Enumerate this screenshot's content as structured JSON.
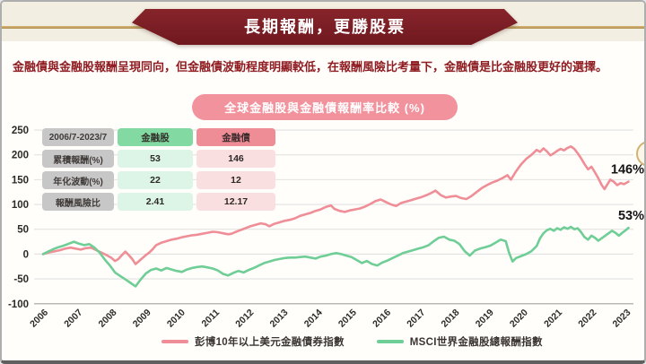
{
  "page": {
    "banner_title": "長期報酬，更勝股票",
    "subtitle": "金融債與金融股報酬呈現同向，但金融債波動程度明顯較低，在報酬風險比考量下，金融債是比金融股更好的選擇。"
  },
  "colors": {
    "banner_maroon": "#7d2128",
    "gold_accent": "#c8a264",
    "subtitle_text": "#8e1c21",
    "badge_pink": "#f1929d",
    "table_label_gray": "#c7c7c7",
    "stock_header_green": "#82d9a1",
    "bond_header_red": "#ee8d95",
    "stock_cell_green": "#dcf5e6",
    "bond_cell_pink": "#fadfe1"
  },
  "table": {
    "period": "2006/7-2023/7",
    "col_stock": "金融股",
    "col_bond": "金融債",
    "rows": [
      {
        "label": "累積報酬(%)",
        "stock": "53",
        "bond": "146"
      },
      {
        "label": "年化波動(%)",
        "stock": "22",
        "bond": "12"
      },
      {
        "label": "報酬風險比",
        "stock": "2.41",
        "bond": "12.17"
      }
    ]
  },
  "chart_data": {
    "type": "line",
    "title": "全球金融股與金融債報酬率比較 (%)",
    "x_range": [
      2006.5,
      2023.58
    ],
    "ylim": [
      -100,
      250
    ],
    "y_ticks": [
      250,
      200,
      150,
      100,
      50,
      0,
      -50,
      -100
    ],
    "x_ticks": [
      "2006",
      "2007",
      "2008",
      "2009",
      "2010",
      "2011",
      "2012",
      "2013",
      "2014",
      "2015",
      "2016",
      "2017",
      "2018",
      "2019",
      "2020",
      "2021",
      "2022",
      "2023"
    ],
    "grid": true,
    "legend_position": "bottom",
    "series": [
      {
        "name": "彭博10年以上美元金融債券指數",
        "color": "#ef8e97",
        "end_label": "146%",
        "final_value": 146,
        "points": [
          [
            2006.5,
            0
          ],
          [
            2006.65,
            3
          ],
          [
            2006.8,
            5
          ],
          [
            2007.0,
            8
          ],
          [
            2007.15,
            11
          ],
          [
            2007.3,
            13
          ],
          [
            2007.45,
            11
          ],
          [
            2007.6,
            9
          ],
          [
            2007.75,
            12
          ],
          [
            2007.9,
            13
          ],
          [
            2008.05,
            8
          ],
          [
            2008.2,
            3
          ],
          [
            2008.35,
            -2
          ],
          [
            2008.5,
            -8
          ],
          [
            2008.6,
            -14
          ],
          [
            2008.7,
            -10
          ],
          [
            2008.8,
            -2
          ],
          [
            2008.9,
            5
          ],
          [
            2009.0,
            -2
          ],
          [
            2009.1,
            -10
          ],
          [
            2009.2,
            -20
          ],
          [
            2009.3,
            -14
          ],
          [
            2009.4,
            -8
          ],
          [
            2009.5,
            -2
          ],
          [
            2009.6,
            3
          ],
          [
            2009.7,
            10
          ],
          [
            2009.8,
            18
          ],
          [
            2009.95,
            23
          ],
          [
            2010.1,
            26
          ],
          [
            2010.25,
            29
          ],
          [
            2010.4,
            31
          ],
          [
            2010.55,
            34
          ],
          [
            2010.7,
            36
          ],
          [
            2010.85,
            38
          ],
          [
            2011.0,
            39
          ],
          [
            2011.15,
            41
          ],
          [
            2011.3,
            43
          ],
          [
            2011.45,
            45
          ],
          [
            2011.6,
            44
          ],
          [
            2011.75,
            42
          ],
          [
            2011.9,
            40
          ],
          [
            2012.0,
            41
          ],
          [
            2012.1,
            44
          ],
          [
            2012.25,
            48
          ],
          [
            2012.4,
            52
          ],
          [
            2012.55,
            56
          ],
          [
            2012.7,
            59
          ],
          [
            2012.85,
            62
          ],
          [
            2013.0,
            60
          ],
          [
            2013.1,
            56
          ],
          [
            2013.25,
            61
          ],
          [
            2013.4,
            64
          ],
          [
            2013.55,
            67
          ],
          [
            2013.7,
            69
          ],
          [
            2013.85,
            72
          ],
          [
            2014.0,
            77
          ],
          [
            2014.15,
            80
          ],
          [
            2014.3,
            83
          ],
          [
            2014.45,
            87
          ],
          [
            2014.6,
            90
          ],
          [
            2014.75,
            95
          ],
          [
            2014.9,
            98
          ],
          [
            2015.0,
            91
          ],
          [
            2015.15,
            87
          ],
          [
            2015.3,
            85
          ],
          [
            2015.45,
            88
          ],
          [
            2015.6,
            90
          ],
          [
            2015.75,
            92
          ],
          [
            2015.9,
            96
          ],
          [
            2016.05,
            101
          ],
          [
            2016.2,
            107
          ],
          [
            2016.35,
            110
          ],
          [
            2016.5,
            105
          ],
          [
            2016.65,
            100
          ],
          [
            2016.8,
            97
          ],
          [
            2016.95,
            103
          ],
          [
            2017.1,
            106
          ],
          [
            2017.25,
            109
          ],
          [
            2017.4,
            112
          ],
          [
            2017.55,
            115
          ],
          [
            2017.7,
            119
          ],
          [
            2017.85,
            124
          ],
          [
            2017.95,
            128
          ],
          [
            2018.1,
            119
          ],
          [
            2018.25,
            114
          ],
          [
            2018.4,
            116
          ],
          [
            2018.55,
            117
          ],
          [
            2018.7,
            113
          ],
          [
            2018.85,
            111
          ],
          [
            2019.0,
            117
          ],
          [
            2019.15,
            125
          ],
          [
            2019.3,
            133
          ],
          [
            2019.45,
            139
          ],
          [
            2019.6,
            144
          ],
          [
            2019.75,
            148
          ],
          [
            2019.9,
            153
          ],
          [
            2020.05,
            159
          ],
          [
            2020.15,
            150
          ],
          [
            2020.3,
            167
          ],
          [
            2020.45,
            181
          ],
          [
            2020.6,
            192
          ],
          [
            2020.75,
            200
          ],
          [
            2020.9,
            210
          ],
          [
            2021.0,
            206
          ],
          [
            2021.1,
            213
          ],
          [
            2021.2,
            207
          ],
          [
            2021.3,
            199
          ],
          [
            2021.4,
            203
          ],
          [
            2021.5,
            208
          ],
          [
            2021.6,
            212
          ],
          [
            2021.7,
            209
          ],
          [
            2021.8,
            214
          ],
          [
            2021.9,
            217
          ],
          [
            2022.0,
            212
          ],
          [
            2022.1,
            203
          ],
          [
            2022.2,
            193
          ],
          [
            2022.3,
            181
          ],
          [
            2022.4,
            171
          ],
          [
            2022.5,
            176
          ],
          [
            2022.6,
            165
          ],
          [
            2022.7,
            153
          ],
          [
            2022.8,
            139
          ],
          [
            2022.88,
            131
          ],
          [
            2022.96,
            140
          ],
          [
            2023.05,
            150
          ],
          [
            2023.15,
            146
          ],
          [
            2023.25,
            139
          ],
          [
            2023.35,
            143
          ],
          [
            2023.45,
            141
          ],
          [
            2023.58,
            146
          ]
        ]
      },
      {
        "name": "MSCI世界金融股總報酬指數",
        "color": "#6fce96",
        "end_label": "53%",
        "final_value": 53,
        "points": [
          [
            2006.5,
            0
          ],
          [
            2006.65,
            5
          ],
          [
            2006.8,
            10
          ],
          [
            2006.95,
            14
          ],
          [
            2007.1,
            17
          ],
          [
            2007.25,
            21
          ],
          [
            2007.4,
            25
          ],
          [
            2007.55,
            21
          ],
          [
            2007.7,
            18
          ],
          [
            2007.85,
            20
          ],
          [
            2008.0,
            13
          ],
          [
            2008.15,
            3
          ],
          [
            2008.3,
            -11
          ],
          [
            2008.45,
            -23
          ],
          [
            2008.6,
            -37
          ],
          [
            2008.75,
            -44
          ],
          [
            2008.9,
            -51
          ],
          [
            2009.05,
            -58
          ],
          [
            2009.2,
            -65
          ],
          [
            2009.35,
            -51
          ],
          [
            2009.5,
            -39
          ],
          [
            2009.65,
            -32
          ],
          [
            2009.8,
            -29
          ],
          [
            2009.95,
            -33
          ],
          [
            2010.1,
            -28
          ],
          [
            2010.25,
            -31
          ],
          [
            2010.4,
            -34
          ],
          [
            2010.55,
            -36
          ],
          [
            2010.7,
            -31
          ],
          [
            2010.85,
            -28
          ],
          [
            2011.0,
            -26
          ],
          [
            2011.15,
            -25
          ],
          [
            2011.3,
            -27
          ],
          [
            2011.45,
            -29
          ],
          [
            2011.6,
            -33
          ],
          [
            2011.75,
            -40
          ],
          [
            2011.9,
            -43
          ],
          [
            2012.05,
            -38
          ],
          [
            2012.2,
            -34
          ],
          [
            2012.35,
            -37
          ],
          [
            2012.5,
            -32
          ],
          [
            2012.65,
            -28
          ],
          [
            2012.8,
            -23
          ],
          [
            2012.95,
            -18
          ],
          [
            2013.1,
            -15
          ],
          [
            2013.25,
            -12
          ],
          [
            2013.4,
            -10
          ],
          [
            2013.55,
            -8
          ],
          [
            2013.7,
            -7
          ],
          [
            2013.85,
            -7
          ],
          [
            2014.0,
            -6
          ],
          [
            2014.15,
            -5
          ],
          [
            2014.3,
            -7
          ],
          [
            2014.45,
            -9
          ],
          [
            2014.6,
            -5
          ],
          [
            2014.75,
            -3
          ],
          [
            2014.9,
            0
          ],
          [
            2015.05,
            2
          ],
          [
            2015.2,
            0
          ],
          [
            2015.35,
            -3
          ],
          [
            2015.5,
            -6
          ],
          [
            2015.65,
            -12
          ],
          [
            2015.8,
            -18
          ],
          [
            2015.95,
            -14
          ],
          [
            2016.1,
            -20
          ],
          [
            2016.25,
            -23
          ],
          [
            2016.4,
            -17
          ],
          [
            2016.55,
            -13
          ],
          [
            2016.7,
            -8
          ],
          [
            2016.85,
            -3
          ],
          [
            2017.0,
            2
          ],
          [
            2017.15,
            5
          ],
          [
            2017.3,
            8
          ],
          [
            2017.45,
            11
          ],
          [
            2017.6,
            14
          ],
          [
            2017.75,
            18
          ],
          [
            2017.9,
            26
          ],
          [
            2018.05,
            33
          ],
          [
            2018.2,
            35
          ],
          [
            2018.35,
            29
          ],
          [
            2018.5,
            27
          ],
          [
            2018.65,
            20
          ],
          [
            2018.8,
            6
          ],
          [
            2018.95,
            -3
          ],
          [
            2019.1,
            7
          ],
          [
            2019.25,
            11
          ],
          [
            2019.4,
            14
          ],
          [
            2019.55,
            17
          ],
          [
            2019.7,
            23
          ],
          [
            2019.85,
            29
          ],
          [
            2020.0,
            26
          ],
          [
            2020.1,
            2
          ],
          [
            2020.2,
            -15
          ],
          [
            2020.3,
            -8
          ],
          [
            2020.45,
            -4
          ],
          [
            2020.6,
            0
          ],
          [
            2020.75,
            6
          ],
          [
            2020.9,
            16
          ],
          [
            2021.0,
            32
          ],
          [
            2021.1,
            42
          ],
          [
            2021.2,
            48
          ],
          [
            2021.3,
            51
          ],
          [
            2021.4,
            47
          ],
          [
            2021.5,
            52
          ],
          [
            2021.6,
            49
          ],
          [
            2021.7,
            54
          ],
          [
            2021.8,
            51
          ],
          [
            2021.9,
            55
          ],
          [
            2022.0,
            50
          ],
          [
            2022.1,
            52
          ],
          [
            2022.2,
            44
          ],
          [
            2022.3,
            34
          ],
          [
            2022.4,
            29
          ],
          [
            2022.5,
            37
          ],
          [
            2022.6,
            33
          ],
          [
            2022.7,
            27
          ],
          [
            2022.8,
            32
          ],
          [
            2022.9,
            37
          ],
          [
            2023.0,
            42
          ],
          [
            2023.1,
            47
          ],
          [
            2023.2,
            43
          ],
          [
            2023.3,
            37
          ],
          [
            2023.4,
            43
          ],
          [
            2023.5,
            48
          ],
          [
            2023.58,
            53
          ]
        ]
      }
    ]
  }
}
